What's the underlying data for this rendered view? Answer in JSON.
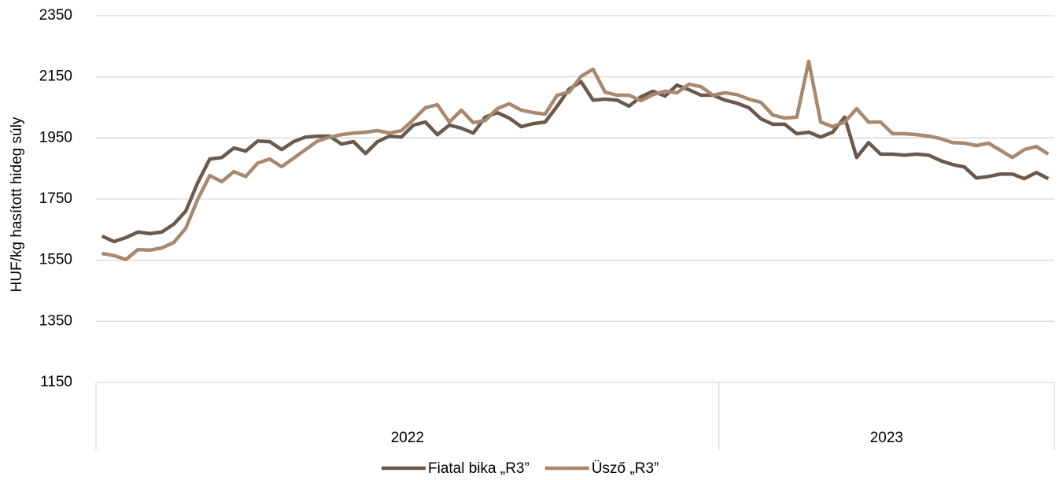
{
  "chart_data": {
    "type": "line",
    "y_label": "HUF/kg hasított hideg súly",
    "categories": [
      null,
      null,
      null,
      null,
      null,
      null,
      null,
      null,
      null,
      null,
      null,
      null,
      null,
      null,
      null,
      null,
      null,
      null,
      null,
      null,
      null,
      null,
      null,
      null,
      null,
      null,
      null,
      null,
      null,
      null,
      null,
      null,
      null,
      null,
      null,
      null,
      null,
      null,
      null,
      null,
      null,
      null,
      null,
      null,
      null,
      null,
      null,
      null,
      null,
      null,
      null,
      null,
      null,
      null,
      null,
      null,
      null,
      null,
      null,
      null,
      null,
      null,
      null,
      null,
      null,
      null,
      null,
      null,
      null,
      null,
      null,
      null,
      null,
      null,
      null,
      null,
      null,
      null,
      null,
      null
    ],
    "x_groups": [
      {
        "label": "2022",
        "count": 52
      },
      {
        "label": "2023",
        "count": 28
      }
    ],
    "series": [
      {
        "name": "Fiatal bika „R3”",
        "color": "#6b5a4b",
        "values": [
          1629,
          1611,
          1624,
          1642,
          1637,
          1642,
          1668,
          1711,
          1804,
          1881,
          1886,
          1917,
          1907,
          1940,
          1938,
          1912,
          1938,
          1953,
          1956,
          1956,
          1930,
          1938,
          1899,
          1938,
          1956,
          1953,
          1992,
          2002,
          1961,
          1992,
          1982,
          1966,
          2018,
          2033,
          2015,
          1987,
          1997,
          2002,
          2054,
          2110,
          2134,
          2074,
          2077,
          2074,
          2054,
          2085,
          2103,
          2087,
          2123,
          2108,
          2090,
          2090,
          2074,
          2064,
          2049,
          2013,
          1995,
          1995,
          1964,
          1969,
          1953,
          1969,
          2018,
          1886,
          1935,
          1897,
          1897,
          1894,
          1897,
          1894,
          1876,
          1863,
          1855,
          1819,
          1824,
          1832,
          1832,
          1817,
          1837,
          1817
        ]
      },
      {
        "name": "Üsző „R3”",
        "color": "#a8896f",
        "values": [
          1572,
          1565,
          1552,
          1585,
          1583,
          1590,
          1608,
          1655,
          1750,
          1827,
          1807,
          1840,
          1824,
          1868,
          1881,
          1856,
          1884,
          1912,
          1940,
          1953,
          1961,
          1966,
          1969,
          1974,
          1966,
          1974,
          2010,
          2049,
          2059,
          2002,
          2041,
          2000,
          2007,
          2046,
          2062,
          2041,
          2033,
          2028,
          2090,
          2100,
          2152,
          2175,
          2100,
          2090,
          2090,
          2072,
          2092,
          2103,
          2098,
          2126,
          2118,
          2090,
          2098,
          2092,
          2077,
          2067,
          2025,
          2015,
          2018,
          2201,
          2002,
          1987,
          2002,
          2046,
          2002,
          2002,
          1964,
          1964,
          1961,
          1956,
          1948,
          1935,
          1933,
          1925,
          1933,
          1910,
          1886,
          1912,
          1922,
          1897
        ]
      }
    ],
    "ylim": [
      1150,
      2350
    ],
    "yticks": [
      1150,
      1350,
      1550,
      1750,
      1950,
      2150,
      2350
    ],
    "grid": true,
    "legend": "bottom"
  }
}
